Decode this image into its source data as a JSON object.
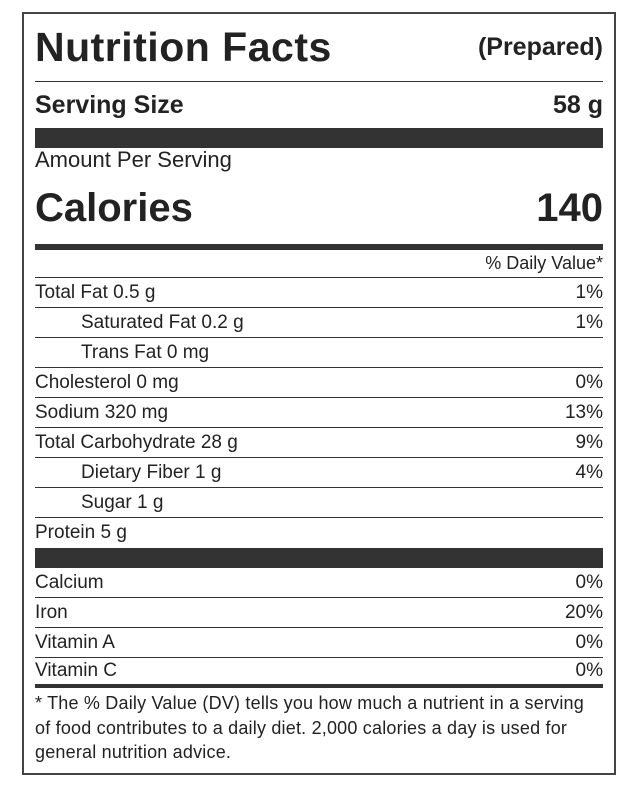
{
  "label": {
    "title": "Nutrition Facts",
    "subtitle": "(Prepared)",
    "serving_label": "Serving Size",
    "serving_value": "58 g",
    "amount_per_serving": "Amount Per Serving",
    "calories_label": "Calories",
    "calories_value": "140",
    "dv_header": "% Daily Value*",
    "nutrients": [
      {
        "name": "Total Fat",
        "amount": "0.5 g",
        "dv": "1%"
      },
      {
        "name": "Saturated Fat",
        "amount": "0.2 g",
        "dv": "1%"
      },
      {
        "name": "Trans Fat",
        "amount": "0 mg"
      },
      {
        "name": "Cholesterol",
        "amount": "0 mg",
        "dv": "0%"
      },
      {
        "name": "Sodium",
        "amount": "320 mg",
        "dv": "13%"
      },
      {
        "name": "Total Carbohydrate",
        "amount": "28 g",
        "dv": "9%"
      },
      {
        "name": "Dietary Fiber",
        "amount": "1 g",
        "dv": "4%"
      },
      {
        "name": "Sugar",
        "amount": "1 g"
      },
      {
        "name": "Protein",
        "amount": "5 g"
      }
    ],
    "vitamins": [
      {
        "name": "Calcium",
        "dv": "0%"
      },
      {
        "name": "Iron",
        "dv": "20%"
      },
      {
        "name": "Vitamin A",
        "dv": "0%"
      },
      {
        "name": "Vitamin C",
        "dv": "0%"
      }
    ],
    "footnote": "* The % Daily Value (DV) tells you how much a nutrient in a serving of food contributes to a daily diet. 2,000 calories a day is used for general nutrition advice."
  }
}
